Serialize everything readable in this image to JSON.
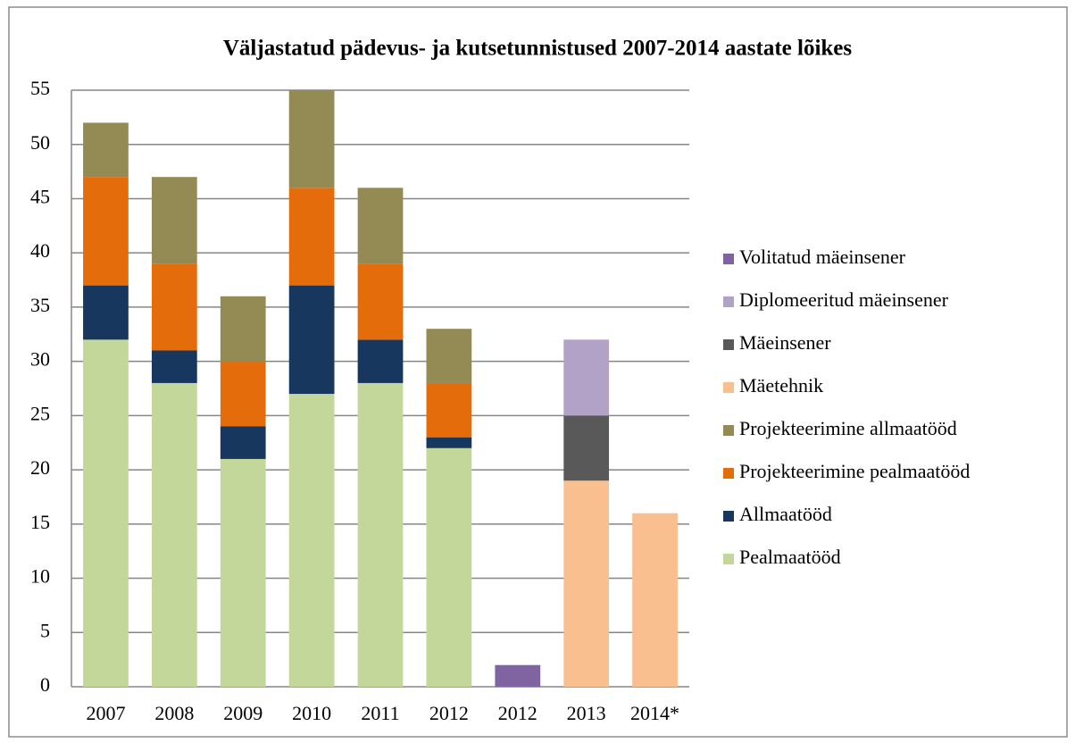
{
  "chart_data": {
    "type": "stacked_bar",
    "title": "Väljastatud pädevus- ja kutsetunnistused 2007-2014 aastate lõikes",
    "categories": [
      "2007",
      "2008",
      "2009",
      "2010",
      "2011",
      "2012",
      "2012",
      "2013",
      "2014*"
    ],
    "series": [
      {
        "name": "Pealmaatööd",
        "color": "#c4d79b",
        "values": [
          32,
          28,
          21,
          27,
          28,
          22,
          null,
          null,
          null
        ]
      },
      {
        "name": "Allmaatööd",
        "color": "#17375e",
        "values": [
          5,
          3,
          3,
          10,
          4,
          1,
          null,
          null,
          null
        ]
      },
      {
        "name": "Projekteerimine pealmaatööd",
        "color": "#e46c0a",
        "values": [
          10,
          8,
          6,
          9,
          7,
          5,
          null,
          null,
          null
        ]
      },
      {
        "name": "Projekteerimine allmaatööd",
        "color": "#948a54",
        "values": [
          5,
          8,
          6,
          9,
          7,
          5,
          null,
          null,
          null
        ]
      },
      {
        "name": "Mäetehnik",
        "color": "#fabf8f",
        "values": [
          null,
          null,
          null,
          null,
          null,
          null,
          null,
          19,
          16
        ]
      },
      {
        "name": "Mäeinsener",
        "color": "#595959",
        "values": [
          null,
          null,
          null,
          null,
          null,
          null,
          null,
          6,
          null
        ]
      },
      {
        "name": "Diplomeeritud mäeinsener",
        "color": "#b3a2c7",
        "values": [
          null,
          null,
          null,
          null,
          null,
          null,
          null,
          7,
          null
        ]
      },
      {
        "name": "Volitatud mäeinsener",
        "color": "#8064a2",
        "values": [
          null,
          null,
          null,
          null,
          null,
          null,
          2,
          null,
          null
        ]
      }
    ],
    "ylim": [
      0,
      55
    ],
    "yticks": [
      0,
      5,
      10,
      15,
      20,
      25,
      30,
      35,
      40,
      45,
      50,
      55
    ],
    "grid": true,
    "legend": "right"
  }
}
